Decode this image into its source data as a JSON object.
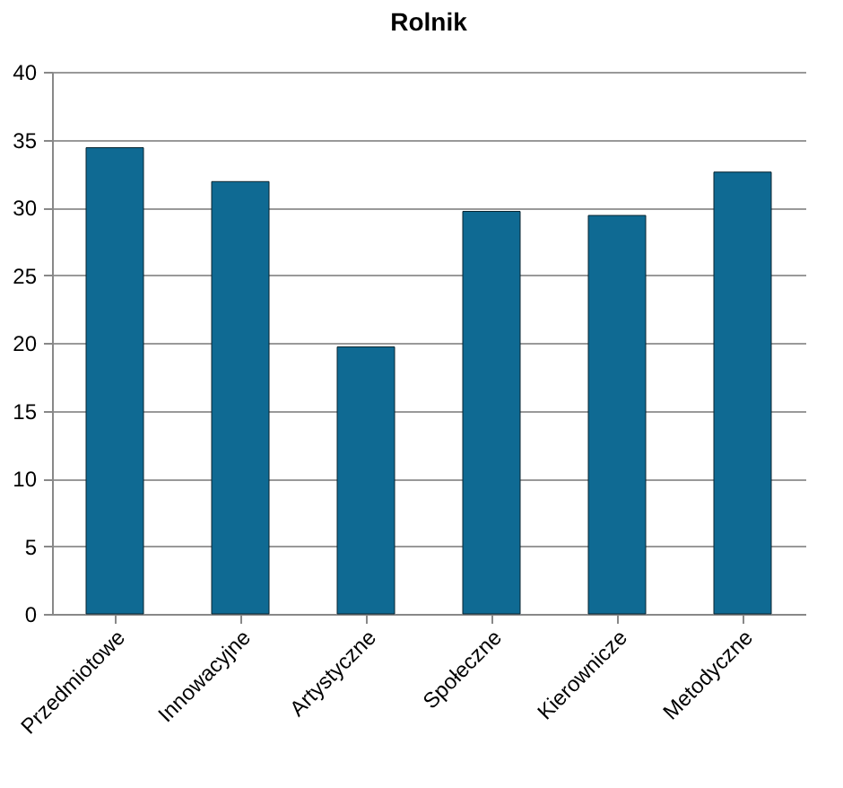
{
  "chart_data": {
    "type": "bar",
    "title": "Rolnik",
    "categories": [
      "Przedmiotowe",
      "Innowacyjne",
      "Artystyczne",
      "Społeczne",
      "Kierownicze",
      "Metodyczne"
    ],
    "values": [
      34.4,
      31.9,
      19.7,
      29.7,
      29.4,
      32.6
    ],
    "color": "#0f6a93",
    "ylim": [
      0,
      40
    ],
    "yticks": [
      0,
      5,
      10,
      15,
      20,
      25,
      30,
      35,
      40
    ],
    "grid": "y"
  }
}
